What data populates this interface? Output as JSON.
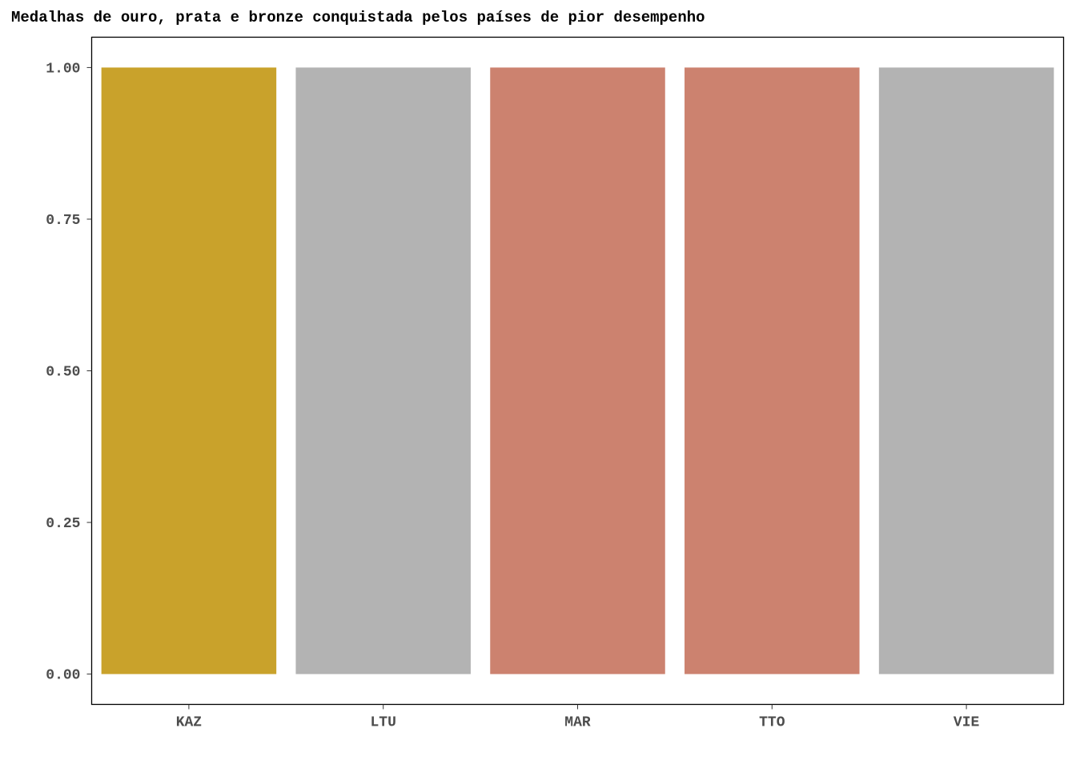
{
  "chart_data": {
    "type": "bar",
    "title": "Medalhas de ouro, prata e bronze conquistada pelos países de pior desempenho",
    "xlabel": "",
    "ylabel": "",
    "categories": [
      "KAZ",
      "LTU",
      "MAR",
      "TTO",
      "VIE"
    ],
    "values": [
      1,
      1,
      1,
      1,
      1
    ],
    "bar_colors": [
      "#c9a22b",
      "#b3b3b3",
      "#cc826f",
      "#cc826f",
      "#b3b3b3"
    ],
    "ylim": [
      -0.05,
      1.05
    ],
    "yticks": [
      0,
      0.25,
      0.5,
      0.75,
      1.0
    ],
    "ytick_labels": [
      "0.00",
      "0.25",
      "0.50",
      "0.75",
      "1.00"
    ],
    "grid": false,
    "legend": "none",
    "panel_border_color": "#000000"
  }
}
